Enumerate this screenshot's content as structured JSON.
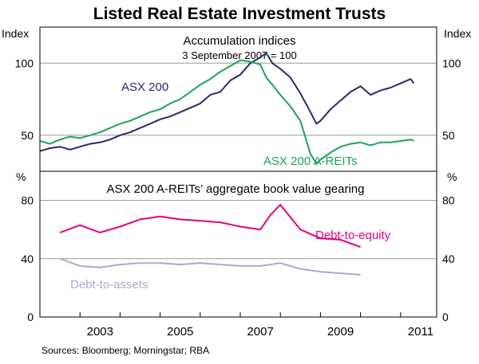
{
  "title": "Listed Real Estate Investment Trusts",
  "source": "Sources: Bloomberg; Morningstar; RBA",
  "x_axis": {
    "ticks": [
      "2003",
      "2005",
      "2007",
      "2009",
      "2011"
    ],
    "minor_ticks": [
      "2002",
      "2004",
      "2006",
      "2008",
      "2010"
    ]
  },
  "colors": {
    "asx200": "#2b2a6b",
    "areits": "#1aa35c",
    "debt_to_equity": "#e6007e",
    "debt_to_assets": "#aaa9d2",
    "grid": "#9a9a9a",
    "frame": "#000000"
  },
  "chart_data": [
    {
      "type": "line",
      "title": "Accumulation indices",
      "subtitle": "3 September 2007 = 100",
      "ylabel_left": "Index",
      "ylabel_right": "Index",
      "ylim": [
        25,
        125
      ],
      "yticks": [
        50,
        100
      ],
      "grid": true,
      "series": [
        {
          "name": "ASX 200",
          "points": [
            [
              2002.0,
              39
            ],
            [
              2002.25,
              41
            ],
            [
              2002.5,
              42
            ],
            [
              2002.75,
              40
            ],
            [
              2003.0,
              42
            ],
            [
              2003.25,
              44
            ],
            [
              2003.5,
              45
            ],
            [
              2003.75,
              47
            ],
            [
              2004.0,
              50
            ],
            [
              2004.25,
              52
            ],
            [
              2004.5,
              55
            ],
            [
              2004.75,
              58
            ],
            [
              2005.0,
              61
            ],
            [
              2005.25,
              63
            ],
            [
              2005.5,
              66
            ],
            [
              2005.75,
              69
            ],
            [
              2006.0,
              72
            ],
            [
              2006.25,
              78
            ],
            [
              2006.5,
              80
            ],
            [
              2006.75,
              88
            ],
            [
              2007.0,
              92
            ],
            [
              2007.25,
              100
            ],
            [
              2007.5,
              104
            ],
            [
              2007.65,
              107
            ],
            [
              2007.8,
              100
            ],
            [
              2008.0,
              96
            ],
            [
              2008.25,
              90
            ],
            [
              2008.5,
              79
            ],
            [
              2008.75,
              66
            ],
            [
              2008.9,
              58
            ],
            [
              2009.0,
              60
            ],
            [
              2009.25,
              68
            ],
            [
              2009.5,
              74
            ],
            [
              2009.75,
              80
            ],
            [
              2010.0,
              84
            ],
            [
              2010.25,
              78
            ],
            [
              2010.5,
              81
            ],
            [
              2010.75,
              83
            ],
            [
              2011.0,
              86
            ],
            [
              2011.25,
              89
            ],
            [
              2011.33,
              86
            ]
          ]
        },
        {
          "name": "ASX 200 A-REITs",
          "points": [
            [
              2002.0,
              46
            ],
            [
              2002.25,
              44
            ],
            [
              2002.5,
              47
            ],
            [
              2002.75,
              49
            ],
            [
              2003.0,
              48
            ],
            [
              2003.25,
              50
            ],
            [
              2003.5,
              52
            ],
            [
              2003.75,
              55
            ],
            [
              2004.0,
              58
            ],
            [
              2004.25,
              60
            ],
            [
              2004.5,
              63
            ],
            [
              2004.75,
              66
            ],
            [
              2005.0,
              68
            ],
            [
              2005.25,
              72
            ],
            [
              2005.5,
              75
            ],
            [
              2005.75,
              80
            ],
            [
              2006.0,
              85
            ],
            [
              2006.25,
              89
            ],
            [
              2006.5,
              94
            ],
            [
              2006.75,
              98
            ],
            [
              2007.0,
              102
            ],
            [
              2007.25,
              101
            ],
            [
              2007.5,
              99
            ],
            [
              2007.65,
              90
            ],
            [
              2007.8,
              85
            ],
            [
              2008.0,
              78
            ],
            [
              2008.25,
              70
            ],
            [
              2008.5,
              60
            ],
            [
              2008.75,
              37
            ],
            [
              2008.9,
              30
            ],
            [
              2009.0,
              33
            ],
            [
              2009.25,
              38
            ],
            [
              2009.5,
              42
            ],
            [
              2009.75,
              44
            ],
            [
              2010.0,
              45
            ],
            [
              2010.25,
              43
            ],
            [
              2010.5,
              45
            ],
            [
              2010.75,
              45
            ],
            [
              2011.0,
              46
            ],
            [
              2011.25,
              47
            ],
            [
              2011.33,
              46
            ]
          ]
        }
      ]
    },
    {
      "type": "line",
      "title": "ASX 200 A-REITs’ aggregate book value gearing",
      "ylabel_left": "%",
      "ylabel_right": "%",
      "ylim": [
        0,
        100
      ],
      "yticks": [
        0,
        40,
        80
      ],
      "grid": true,
      "series": [
        {
          "name": "Debt-to-equity",
          "points": [
            [
              2002.5,
              58
            ],
            [
              2003.0,
              63
            ],
            [
              2003.5,
              58
            ],
            [
              2004.0,
              62
            ],
            [
              2004.5,
              67
            ],
            [
              2005.0,
              69
            ],
            [
              2005.5,
              67
            ],
            [
              2006.0,
              66
            ],
            [
              2006.5,
              65
            ],
            [
              2007.0,
              62
            ],
            [
              2007.5,
              60
            ],
            [
              2007.75,
              70
            ],
            [
              2008.0,
              77
            ],
            [
              2008.5,
              60
            ],
            [
              2009.0,
              54
            ],
            [
              2009.5,
              53
            ],
            [
              2010.0,
              48
            ]
          ]
        },
        {
          "name": "Debt-to-assets",
          "points": [
            [
              2002.5,
              40
            ],
            [
              2003.0,
              35
            ],
            [
              2003.5,
              34
            ],
            [
              2004.0,
              36
            ],
            [
              2004.5,
              37
            ],
            [
              2005.0,
              37
            ],
            [
              2005.5,
              36
            ],
            [
              2006.0,
              37
            ],
            [
              2006.5,
              36
            ],
            [
              2007.0,
              35
            ],
            [
              2007.5,
              35
            ],
            [
              2007.75,
              36
            ],
            [
              2008.0,
              37
            ],
            [
              2008.5,
              33
            ],
            [
              2009.0,
              31
            ],
            [
              2009.5,
              30
            ],
            [
              2010.0,
              29
            ]
          ]
        }
      ]
    }
  ]
}
